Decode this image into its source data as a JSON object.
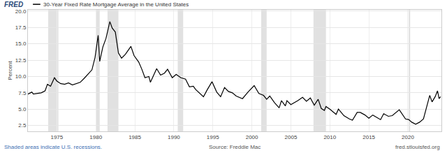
{
  "chart_data": {
    "type": "line",
    "logo": "FRED",
    "y_label": "Percent",
    "footer_note": "Shaded areas indicate U.S. recessions.",
    "source": "Source: Freddie Mac",
    "site": "fred.stlouisfed.org",
    "grid": true,
    "xlim": [
      1971.3,
      2024.3
    ],
    "xticks": [
      1975,
      1980,
      1985,
      1990,
      1995,
      2000,
      2005,
      2010,
      2015,
      2020
    ],
    "ylim": [
      1.6,
      20.2
    ],
    "yticks": [
      {
        "value": 2.5,
        "label": "2.5"
      },
      {
        "value": 5,
        "label": "5.0"
      },
      {
        "value": 7.5,
        "label": "7.5"
      },
      {
        "value": 10,
        "label": "10.0"
      },
      {
        "value": 12.5,
        "label": "12.5"
      },
      {
        "value": 15,
        "label": "15.0"
      },
      {
        "value": 17.5,
        "label": "17.5"
      },
      {
        "value": 20,
        "label": "20.0"
      }
    ],
    "recessions": [
      [
        1973.9,
        1975.2
      ],
      [
        1980.0,
        1980.5
      ],
      [
        1981.5,
        1982.9
      ],
      [
        1990.5,
        1991.2
      ],
      [
        2001.2,
        2001.9
      ],
      [
        2007.9,
        2009.5
      ],
      [
        2020.1,
        2020.3
      ]
    ],
    "recession_color": "#e1e1e1",
    "x": [
      1971.3,
      1971.8,
      1972.0,
      1972.5,
      1973.0,
      1973.5,
      1973.8,
      1974.2,
      1974.7,
      1975.0,
      1975.5,
      1976.0,
      1976.5,
      1977.0,
      1977.5,
      1978.0,
      1978.5,
      1979.0,
      1979.5,
      1979.9,
      1980.3,
      1980.5,
      1980.9,
      1981.3,
      1981.8,
      1982.1,
      1982.5,
      1982.9,
      1983.3,
      1983.8,
      1984.5,
      1984.9,
      1985.5,
      1985.9,
      1986.3,
      1986.8,
      1987.0,
      1987.8,
      1988.3,
      1988.8,
      1989.2,
      1989.8,
      1990.3,
      1990.9,
      1991.5,
      1992.0,
      1992.5,
      1992.8,
      1993.5,
      1993.8,
      1994.3,
      1994.9,
      1995.5,
      1996.0,
      1996.5,
      1997.0,
      1997.5,
      1998.0,
      1998.8,
      1999.5,
      2000.3,
      2000.9,
      2001.5,
      2001.9,
      2002.3,
      2002.9,
      2003.5,
      2003.8,
      2004.3,
      2004.5,
      2005.0,
      2005.9,
      2006.5,
      2007.0,
      2007.5,
      2008.0,
      2008.5,
      2008.9,
      2009.3,
      2009.5,
      2010.0,
      2010.8,
      2011.1,
      2011.8,
      2012.5,
      2012.9,
      2013.5,
      2013.9,
      2014.5,
      2015.0,
      2015.5,
      2016.5,
      2016.9,
      2017.5,
      2018.0,
      2018.9,
      2019.7,
      2020.1,
      2020.5,
      2021.0,
      2021.5,
      2022.0,
      2022.4,
      2022.8,
      2023.1,
      2023.5,
      2023.8,
      2024.0,
      2024.2
    ],
    "series": [
      {
        "name": "30-Year Fixed Rate Mortgage Average in the United States",
        "color": "#000000",
        "values": [
          7.3,
          7.6,
          7.3,
          7.4,
          7.5,
          7.8,
          8.8,
          8.5,
          9.8,
          9.3,
          8.9,
          8.8,
          9.0,
          8.7,
          8.9,
          9.1,
          9.7,
          10.3,
          11.0,
          12.9,
          16.3,
          12.3,
          14.5,
          15.8,
          18.4,
          17.4,
          16.8,
          13.6,
          12.8,
          13.4,
          14.6,
          13.2,
          12.2,
          11.1,
          9.8,
          10.0,
          9.1,
          11.2,
          10.2,
          10.5,
          11.1,
          9.8,
          10.3,
          9.8,
          9.6,
          8.4,
          8.5,
          8.0,
          7.2,
          6.9,
          8.0,
          9.2,
          7.6,
          6.9,
          8.3,
          7.7,
          7.5,
          7.0,
          6.6,
          7.6,
          8.6,
          7.4,
          7.1,
          6.5,
          7.0,
          6.0,
          5.2,
          6.3,
          5.5,
          6.3,
          5.7,
          6.3,
          6.8,
          6.2,
          6.7,
          5.6,
          6.5,
          5.1,
          4.8,
          5.4,
          5.0,
          4.2,
          5.0,
          4.0,
          3.5,
          3.3,
          4.5,
          4.5,
          4.1,
          3.6,
          4.1,
          3.4,
          4.3,
          3.9,
          4.0,
          4.9,
          3.5,
          3.4,
          3.0,
          2.7,
          3.0,
          3.5,
          5.3,
          7.1,
          6.1,
          6.9,
          7.8,
          6.6,
          6.9
        ]
      }
    ]
  }
}
